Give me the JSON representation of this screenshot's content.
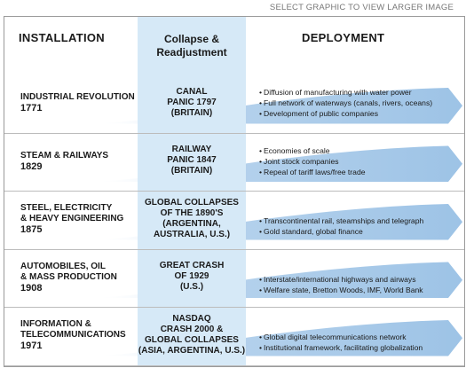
{
  "top_link": "SELECT GRAPHIC TO VIEW LARGER IMAGE",
  "headers": {
    "installation": "INSTALLATION",
    "collapse": "Collapse & Readjustment",
    "deployment": "DEPLOYMENT"
  },
  "colors": {
    "arrow": "#9dc3e6",
    "collapse_band": "#d6e9f7",
    "divider": "#bcbcbc"
  },
  "revolutions": [
    {
      "name": "INDUSTRIAL REVOLUTION",
      "year": "1771",
      "collapse": "CANAL\nPANIC 1797\n(BRITAIN)",
      "deployment": [
        "Diffusion of manufacturing with water power",
        "Full network of waterways (canals, rivers, oceans)",
        "Development of public companies"
      ]
    },
    {
      "name": "STEAM & RAILWAYS",
      "year": "1829",
      "collapse": "RAILWAY\nPANIC 1847\n(BRITAIN)",
      "deployment": [
        "Economies of scale",
        "Joint stock companies",
        "Repeal of tariff laws/free trade"
      ]
    },
    {
      "name": "STEEL, ELECTRICITY\n& HEAVY ENGINEERING",
      "year": "1875",
      "collapse": "GLOBAL COLLAPSES\nOF THE 1890'S\n(ARGENTINA,\nAUSTRALIA, U.S.)",
      "deployment": [
        "Transcontinental rail, steamships and telegraph",
        "Gold standard, global finance"
      ]
    },
    {
      "name": "AUTOMOBILES, OIL\n& MASS PRODUCTION",
      "year": "1908",
      "collapse": "GREAT CRASH\nOF 1929\n(U.S.)",
      "deployment": [
        "Interstate/international highways and airways",
        "Welfare state, Bretton Woods, IMF, World Bank"
      ]
    },
    {
      "name": "INFORMATION &\nTELECOMMUNICATIONS",
      "year": "1971",
      "collapse": "NASDAQ\nCRASH 2000 &\nGLOBAL COLLAPSES\n(ASIA, ARGENTINA, U.S.)",
      "deployment": [
        "Global digital telecommunications network",
        "Institutional framework, facilitating globalization"
      ]
    }
  ]
}
